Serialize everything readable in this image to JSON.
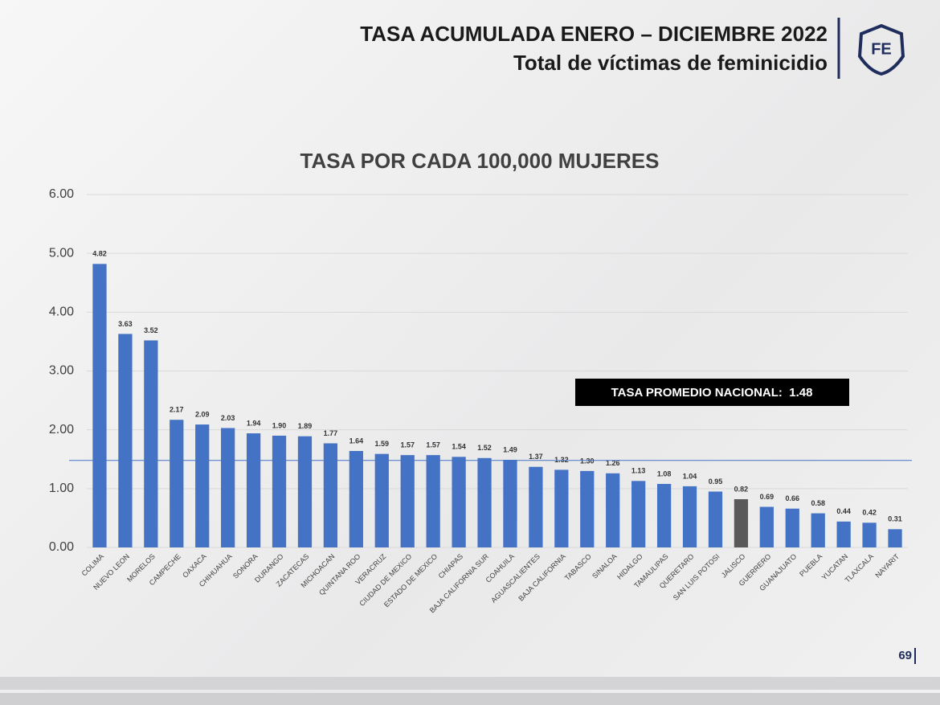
{
  "header": {
    "title": "TASA ACUMULADA ENERO – DICIEMBRE 2022",
    "subtitle": "Total de víctimas de feminicidio",
    "logo": "FE"
  },
  "page_number": "69",
  "chart_data": {
    "type": "bar",
    "title": "TASA POR CADA 100,000 MUJERES",
    "categories": [
      "COLIMA",
      "NUEVO LEON",
      "MORELOS",
      "CAMPECHE",
      "OAXACA",
      "CHIHUAHUA",
      "SONORA",
      "DURANGO",
      "ZACATECAS",
      "MICHOACAN",
      "QUINTANA ROO",
      "VERACRUZ",
      "CIUDAD DE MEXICO",
      "ESTADO DE MEXICO",
      "CHIAPAS",
      "BAJA CALIFORNIA SUR",
      "COAHUILA",
      "AGUASCALIENTES",
      "BAJA CALIFORNIA",
      "TABASCO",
      "SINALOA",
      "HIDALGO",
      "TAMAULIPAS",
      "QUERETARO",
      "SAN LUIS POTOSI",
      "JALISCO",
      "GUERRERO",
      "GUANAJUATO",
      "PUEBLA",
      "YUCATAN",
      "TLAXCALA",
      "NAYARIT"
    ],
    "values": [
      4.82,
      3.63,
      3.52,
      2.17,
      2.09,
      2.03,
      1.94,
      1.9,
      1.89,
      1.77,
      1.64,
      1.59,
      1.57,
      1.57,
      1.54,
      1.52,
      1.49,
      1.37,
      1.32,
      1.3,
      1.26,
      1.13,
      1.08,
      1.04,
      0.95,
      0.82,
      0.69,
      0.66,
      0.58,
      0.44,
      0.42,
      0.31
    ],
    "value_labels": [
      "4.82",
      "3.63",
      "3.52",
      "2.17",
      "2.09",
      "2.03",
      "1.94",
      "1.90",
      "1.89",
      "1.77",
      "1.64",
      "1.59",
      "1.57",
      "1.57",
      "1.54",
      "1.52",
      "1.49",
      "1.37",
      "1.32",
      "1.30",
      "1.26",
      "1.13",
      "1.08",
      "1.04",
      "0.95",
      "0.82",
      "0.69",
      "0.66",
      "0.58",
      "0.44",
      "0.42",
      "0.31"
    ],
    "colors": [
      "#4472c4",
      "#4472c4",
      "#4472c4",
      "#4472c4",
      "#4472c4",
      "#4472c4",
      "#4472c4",
      "#4472c4",
      "#4472c4",
      "#4472c4",
      "#4472c4",
      "#4472c4",
      "#4472c4",
      "#4472c4",
      "#4472c4",
      "#4472c4",
      "#4472c4",
      "#4472c4",
      "#4472c4",
      "#4472c4",
      "#4472c4",
      "#4472c4",
      "#4472c4",
      "#4472c4",
      "#4472c4",
      "#595959",
      "#4472c4",
      "#4472c4",
      "#4472c4",
      "#4472c4",
      "#4472c4",
      "#4472c4"
    ],
    "ylim": [
      0,
      6
    ],
    "yticks": [
      {
        "value": 0,
        "label": "0.00"
      },
      {
        "value": 1,
        "label": "1.00"
      },
      {
        "value": 2,
        "label": "2.00"
      },
      {
        "value": 3,
        "label": "3.00"
      },
      {
        "value": 4,
        "label": "4.00"
      },
      {
        "value": 5,
        "label": "5.00"
      },
      {
        "value": 6,
        "label": "6.00"
      }
    ],
    "grid": true,
    "reference_line": {
      "value": 1.48,
      "label": "TASA PROMEDIO NACIONAL:  1.48",
      "color": "#4472c4"
    }
  }
}
